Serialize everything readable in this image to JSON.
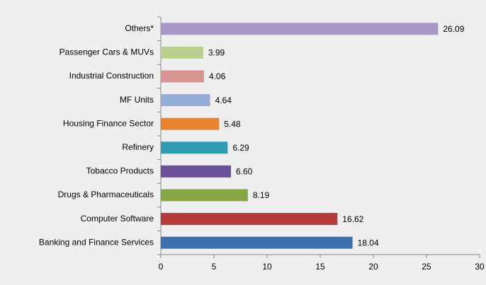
{
  "chart_data": {
    "type": "barh",
    "categories": [
      "Others*",
      "Passenger Cars & MUVs",
      "Industrial Construction",
      "MF Units",
      "Housing Finance Sector",
      "Refinery",
      "Tobacco Products",
      "Drugs & Pharmaceuticals",
      "Computer Software",
      "Banking and Finance Services"
    ],
    "values": [
      26.09,
      3.99,
      4.06,
      4.64,
      5.48,
      6.29,
      6.6,
      8.19,
      16.62,
      18.04
    ],
    "value_labels": [
      "26.09",
      "3.99",
      "4.06",
      "4.64",
      "5.48",
      "6.29",
      "6.60",
      "8.19",
      "16.62",
      "18.04"
    ],
    "colors": [
      "#a898c9",
      "#b9d08f",
      "#d99392",
      "#96add7",
      "#e8832f",
      "#2f9cb1",
      "#6c5097",
      "#87a645",
      "#b43b38",
      "#3c70b1"
    ],
    "xlim": [
      0,
      30
    ],
    "xticks": [
      0,
      5,
      10,
      15,
      20,
      25,
      30
    ]
  }
}
